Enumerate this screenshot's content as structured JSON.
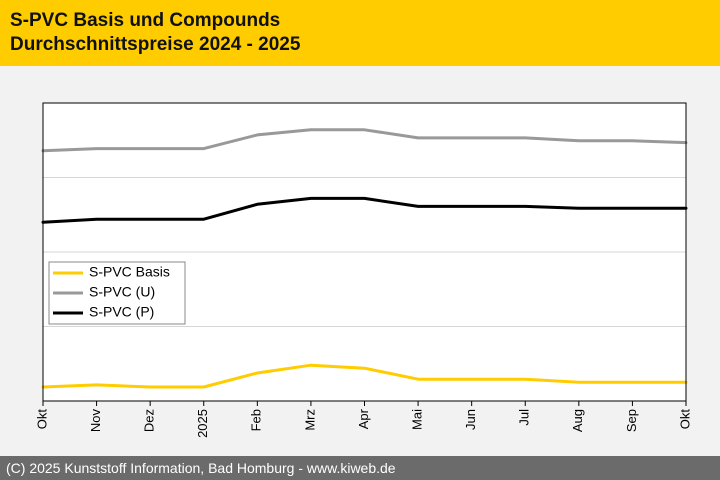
{
  "header": {
    "title": "S-PVC Basis und Compounds",
    "subtitle": "Durchschnittspreise 2024 - 2025"
  },
  "footer": {
    "text": "(C) 2025 Kunststoff Information, Bad Homburg - www.kiweb.de"
  },
  "colors": {
    "header_bg": "#ffcc00",
    "footer_bg": "#6b6b6b"
  },
  "chart_data": {
    "type": "line",
    "title": "",
    "xlabel": "",
    "ylabel": "",
    "categories": [
      "Okt",
      "Nov",
      "Dez",
      "2025",
      "Feb",
      "Mrz",
      "Apr",
      "Mai",
      "Jun",
      "Jul",
      "Aug",
      "Sep",
      "Okt"
    ],
    "ylim": [
      0,
      100
    ],
    "y_ticks_labeled": false,
    "grid": true,
    "legend_position": "left",
    "series": [
      {
        "name": "S-PVC Basis",
        "color": "#ffcc00",
        "values": [
          4.7,
          5.4,
          4.7,
          4.7,
          9.4,
          12.0,
          11.0,
          7.3,
          7.3,
          7.3,
          6.3,
          6.3,
          6.3
        ]
      },
      {
        "name": "S-PVC (U)",
        "color": "#999999",
        "values": [
          84.0,
          84.7,
          84.7,
          84.7,
          89.3,
          91.0,
          91.0,
          88.3,
          88.3,
          88.3,
          87.3,
          87.3,
          86.7
        ]
      },
      {
        "name": "S-PVC (P)",
        "color": "#000000",
        "values": [
          60.0,
          61.0,
          61.0,
          61.0,
          66.0,
          68.0,
          68.0,
          65.3,
          65.3,
          65.3,
          64.7,
          64.7,
          64.7
        ]
      }
    ]
  }
}
